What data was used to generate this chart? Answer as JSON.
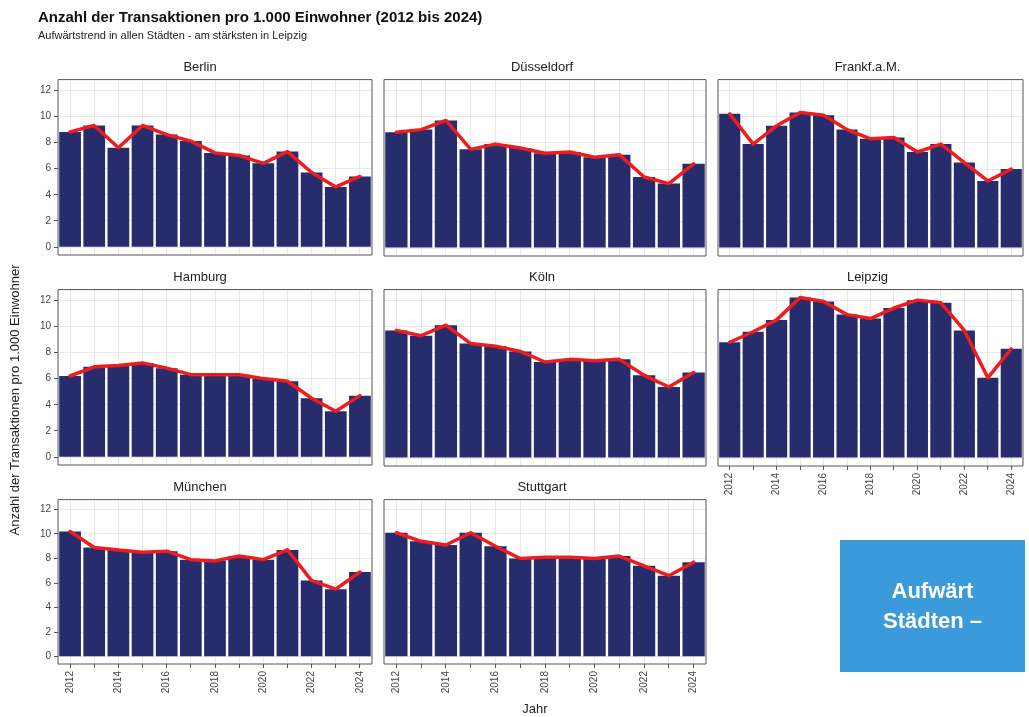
{
  "chart_data": [
    {
      "type": "other",
      "title": "Anzahl der Transaktionen pro 1.000 Einwohner (2012 bis 2024)",
      "subtitle": "Aufwärtstrend in allen Städten - am stärksten in Leipzig"
    },
    {
      "type": "bar",
      "title": "Berlin",
      "categories": [
        "2012",
        null,
        "2014",
        null,
        "2016",
        null,
        "2018",
        null,
        "2020",
        null,
        "2022",
        null,
        "2024"
      ],
      "ylim": [
        -0.6,
        12.8
      ],
      "yticks": [
        0,
        2,
        4,
        6,
        8,
        10,
        12
      ],
      "grid": true,
      "tick_labels": "y",
      "series": [
        {
          "type": "bar",
          "color": "#272c6c",
          "values": [
            8.8,
            9.3,
            7.6,
            9.3,
            8.6,
            8.1,
            7.2,
            7.0,
            6.4,
            7.3,
            5.7,
            4.6,
            5.4
          ]
        },
        {
          "type": "line",
          "color": "#ee1c1c",
          "marker": "none",
          "values": [
            8.8,
            9.3,
            7.6,
            9.3,
            8.6,
            8.1,
            7.2,
            7.0,
            6.4,
            7.3,
            5.7,
            4.6,
            5.4
          ]
        }
      ]
    },
    {
      "type": "bar",
      "title": "Düsseldorf",
      "categories": [
        "2012",
        null,
        "2014",
        null,
        "2016",
        null,
        "2018",
        null,
        "2020",
        null,
        "2022",
        null,
        "2024"
      ],
      "ylim": [
        -0.6,
        12.8
      ],
      "yticks": [
        0,
        2,
        4,
        6,
        8,
        10,
        12
      ],
      "grid": true,
      "tick_labels": false,
      "series": [
        {
          "type": "bar",
          "color": "#272c6c",
          "values": [
            8.8,
            9.0,
            9.7,
            7.5,
            7.9,
            7.6,
            7.2,
            7.3,
            6.9,
            7.1,
            5.4,
            4.9,
            6.4
          ]
        },
        {
          "type": "line",
          "color": "#ee1c1c",
          "marker": "none",
          "values": [
            8.8,
            9.0,
            9.7,
            7.5,
            7.9,
            7.6,
            7.2,
            7.3,
            6.9,
            7.1,
            5.4,
            4.9,
            6.4
          ]
        }
      ]
    },
    {
      "type": "bar",
      "title": "Frankf.a.M.",
      "categories": [
        "2012",
        null,
        "2014",
        null,
        "2016",
        null,
        "2018",
        null,
        "2020",
        null,
        "2022",
        null,
        "2024"
      ],
      "ylim": [
        -0.6,
        12.8
      ],
      "yticks": [
        0,
        2,
        4,
        6,
        8,
        10,
        12
      ],
      "grid": true,
      "tick_labels": false,
      "series": [
        {
          "type": "bar",
          "color": "#272c6c",
          "values": [
            10.2,
            7.9,
            9.3,
            10.3,
            10.1,
            9.0,
            8.3,
            8.4,
            7.3,
            7.9,
            6.5,
            5.1,
            6.0
          ]
        },
        {
          "type": "line",
          "color": "#ee1c1c",
          "marker": "none",
          "values": [
            10.2,
            7.9,
            9.3,
            10.3,
            10.1,
            9.0,
            8.3,
            8.4,
            7.3,
            7.9,
            6.5,
            5.1,
            6.0
          ]
        }
      ]
    },
    {
      "type": "bar",
      "title": "Hamburg",
      "ylabel": "Anzahl der Transaktionen pro 1.000 Einwohner",
      "categories": [
        "2012",
        null,
        "2014",
        null,
        "2016",
        null,
        "2018",
        null,
        "2020",
        null,
        "2022",
        null,
        "2024"
      ],
      "ylim": [
        -0.6,
        12.8
      ],
      "yticks": [
        0,
        2,
        4,
        6,
        8,
        10,
        12
      ],
      "grid": true,
      "tick_labels": "y",
      "series": [
        {
          "type": "bar",
          "color": "#272c6c",
          "values": [
            6.2,
            6.9,
            7.0,
            7.2,
            6.8,
            6.3,
            6.3,
            6.3,
            6.0,
            5.8,
            4.5,
            3.5,
            4.7
          ]
        },
        {
          "type": "line",
          "color": "#ee1c1c",
          "marker": "none",
          "values": [
            6.2,
            6.9,
            7.0,
            7.2,
            6.8,
            6.3,
            6.3,
            6.3,
            6.0,
            5.8,
            4.5,
            3.5,
            4.7
          ]
        }
      ]
    },
    {
      "type": "bar",
      "title": "Köln",
      "categories": [
        "2012",
        null,
        "2014",
        null,
        "2016",
        null,
        "2018",
        null,
        "2020",
        null,
        "2022",
        null,
        "2024"
      ],
      "ylim": [
        -0.6,
        12.8
      ],
      "yticks": [
        0,
        2,
        4,
        6,
        8,
        10,
        12
      ],
      "grid": true,
      "tick_labels": false,
      "series": [
        {
          "type": "bar",
          "color": "#272c6c",
          "values": [
            9.7,
            9.3,
            10.1,
            8.7,
            8.5,
            8.1,
            7.3,
            7.5,
            7.4,
            7.5,
            6.3,
            5.4,
            6.5
          ]
        },
        {
          "type": "line",
          "color": "#ee1c1c",
          "marker": "none",
          "values": [
            9.7,
            9.3,
            10.1,
            8.7,
            8.5,
            8.1,
            7.3,
            7.5,
            7.4,
            7.5,
            6.3,
            5.4,
            6.5
          ]
        }
      ]
    },
    {
      "type": "bar",
      "title": "Leipzig",
      "categories": [
        "2012",
        null,
        "2014",
        null,
        "2016",
        null,
        "2018",
        null,
        "2020",
        null,
        "2022",
        null,
        "2024"
      ],
      "ylim": [
        -0.6,
        12.8
      ],
      "yticks": [
        0,
        2,
        4,
        6,
        8,
        10,
        12
      ],
      "grid": true,
      "tick_labels": "x",
      "series": [
        {
          "type": "bar",
          "color": "#272c6c",
          "values": [
            8.8,
            9.6,
            10.5,
            12.2,
            11.9,
            10.9,
            10.6,
            11.4,
            12.0,
            11.8,
            9.7,
            6.1,
            8.3
          ]
        },
        {
          "type": "line",
          "color": "#ee1c1c",
          "marker": "none",
          "values": [
            8.8,
            9.6,
            10.5,
            12.2,
            11.9,
            10.9,
            10.6,
            11.4,
            12.0,
            11.8,
            9.7,
            6.1,
            8.3
          ]
        }
      ]
    },
    {
      "type": "bar",
      "title": "München",
      "categories": [
        "2012",
        null,
        "2014",
        null,
        "2016",
        null,
        "2018",
        null,
        "2020",
        null,
        "2022",
        null,
        "2024"
      ],
      "ylim": [
        -0.6,
        12.8
      ],
      "yticks": [
        0,
        2,
        4,
        6,
        8,
        10,
        12
      ],
      "grid": true,
      "series": [
        {
          "type": "bar",
          "color": "#272c6c",
          "values": [
            10.2,
            8.9,
            8.7,
            8.5,
            8.6,
            7.9,
            7.8,
            8.2,
            7.9,
            8.7,
            6.2,
            5.5,
            6.9
          ]
        },
        {
          "type": "line",
          "color": "#ee1c1c",
          "marker": "none",
          "values": [
            10.2,
            8.9,
            8.7,
            8.5,
            8.6,
            7.9,
            7.8,
            8.2,
            7.9,
            8.7,
            6.2,
            5.5,
            6.9
          ]
        }
      ]
    },
    {
      "type": "bar",
      "title": "Stuttgart",
      "xlabel": "Jahr",
      "categories": [
        "2012",
        null,
        "2014",
        null,
        "2016",
        null,
        "2018",
        null,
        "2020",
        null,
        "2022",
        null,
        "2024"
      ],
      "ylim": [
        -0.6,
        12.8
      ],
      "yticks": [
        0,
        2,
        4,
        6,
        8,
        10,
        12
      ],
      "grid": true,
      "tick_labels": "x",
      "series": [
        {
          "type": "bar",
          "color": "#272c6c",
          "values": [
            10.1,
            9.4,
            9.1,
            10.1,
            9.0,
            8.0,
            8.1,
            8.1,
            8.0,
            8.2,
            7.4,
            6.6,
            7.7
          ]
        },
        {
          "type": "line",
          "color": "#ee1c1c",
          "marker": "none",
          "values": [
            10.1,
            9.4,
            9.1,
            10.1,
            9.0,
            8.0,
            8.1,
            8.1,
            8.0,
            8.2,
            7.4,
            6.6,
            7.7
          ]
        }
      ]
    },
    {
      "type": "other",
      "annotations": [
        "Aufwärt",
        "Städten –"
      ]
    }
  ]
}
